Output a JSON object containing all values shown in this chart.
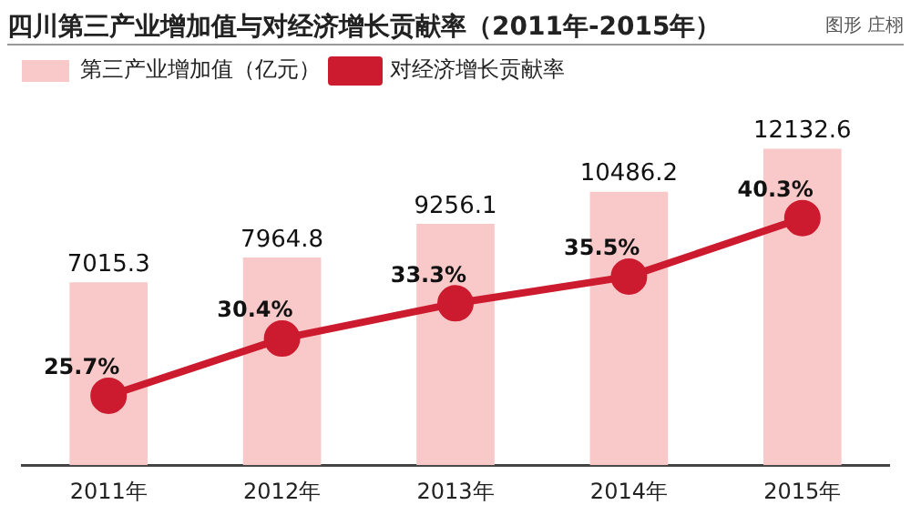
{
  "chart_data": {
    "type": "bar",
    "title": "四川第三产业增加值与对经济增长贡献率（2011年-2015年）",
    "annotations": [
      "图形 庄栩"
    ],
    "categories": [
      "2011年",
      "2012年",
      "2013年",
      "2014年",
      "2015年"
    ],
    "series": [
      {
        "name": "第三产业增加值（亿元）",
        "color": "#f9c9c9",
        "values": [
          7015.3,
          7964.8,
          9256.1,
          10486.2,
          12132.6
        ]
      },
      {
        "name": "对经济增长贡献率",
        "type": "line",
        "axis": "y2",
        "color": "#cc1a2e",
        "values": [
          25.7,
          30.4,
          33.3,
          35.5,
          40.3
        ],
        "value_labels": [
          "25.7%",
          "30.4%",
          "33.3%",
          "35.5%",
          "40.3%"
        ]
      }
    ],
    "data_labels": true,
    "legend": "top left",
    "tick_labels": "x",
    "marker": "circle"
  }
}
